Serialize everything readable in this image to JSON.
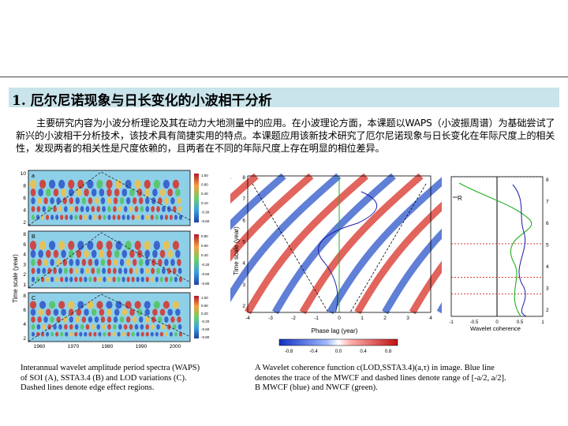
{
  "section": {
    "number": "1.",
    "title": "厄尔尼诺现象与日长变化的小波相干分析"
  },
  "abstract": "主要研究内容为小波分析理论及其在动力大地测量中的应用。在小波理论方面，本课题以WAPS（小波振周谱）为基础尝试了新兴的小波相干分析技术，该技术具有简捷实用的特点。本课题应用该新技术研究了厄尔尼诺现象与日长变化在年际尺度上的相关性，发现两者的相关性是尺度依赖的，且两者在不同的年际尺度上存在明显的相位差异。",
  "left_figure": {
    "panel_labels": [
      "a",
      "B",
      "C"
    ],
    "y_axis_label": "Time scale (year)",
    "y_ticks_top": [
      "10",
      "8",
      "6",
      "4",
      "2"
    ],
    "y_ticks_mid": [
      "8",
      "6",
      "4",
      "3",
      "2",
      "1"
    ],
    "y_ticks_bottom": [
      "8",
      "6",
      "4",
      "2"
    ],
    "x_ticks": [
      "1960",
      "1970",
      "1980",
      "1990",
      "2000"
    ],
    "colorbar_ticks_a": [
      "1.00",
      "0.80",
      "0.40",
      "0.10",
      "-0.30",
      "-0.60"
    ],
    "colorbar_ticks_b": [
      "0.80",
      "0.60",
      "0.40",
      "-0.20",
      "-0.60",
      "-0.80"
    ],
    "colorbar_ticks_c": [
      "1.00",
      "0.60",
      "0.20",
      "-0.20",
      "-0.60",
      "-0.80"
    ]
  },
  "middle_figure": {
    "y_axis_label": "Time scale (year)",
    "y_ticks": [
      "8",
      "7",
      "6",
      "5",
      "4",
      "3",
      "2"
    ],
    "x_ticks": [
      "-4",
      "-3",
      "-2",
      "-1",
      "0",
      "1",
      "2",
      "3",
      "4"
    ],
    "x_axis_label": "Phase lag (year)",
    "colorbar_ticks": [
      "-0.8",
      "-0.4",
      "0.0",
      "0.4",
      "0.8"
    ]
  },
  "right_figure": {
    "legend": "R",
    "y_ticks_right": [
      "8",
      "7",
      "6",
      "5",
      "4",
      "3",
      "2"
    ],
    "x_ticks": [
      "-1",
      "-0.5",
      "0",
      "0.5",
      "1"
    ],
    "x_axis_label": "Wavelet coherence"
  },
  "caption_left": [
    "Interannual wavelet amplitude period spectra (WAPS)",
    "of SOI (A), SSTA3.4 (B) and LOD variations (C).",
    "Dashed lines denote edge effect regions."
  ],
  "caption_right": [
    "A Wavelet coherence function c(LOD,SSTA3.4)(a,τ) in image. Blue line",
    "denotes the trace of the MWCF and dashed lines denote range of [-a/2, a/2].",
    "B MWCF (blue) and NWCF (green)."
  ],
  "colors": {
    "title_bg": "#c9e4ea",
    "heat_red": "#d73027",
    "heat_blue": "#2b54c8",
    "heat_green": "#4fc45a",
    "trace_blue": "#1a1aa8",
    "trace_green": "#20b020",
    "dotted_red": "#d02020"
  }
}
